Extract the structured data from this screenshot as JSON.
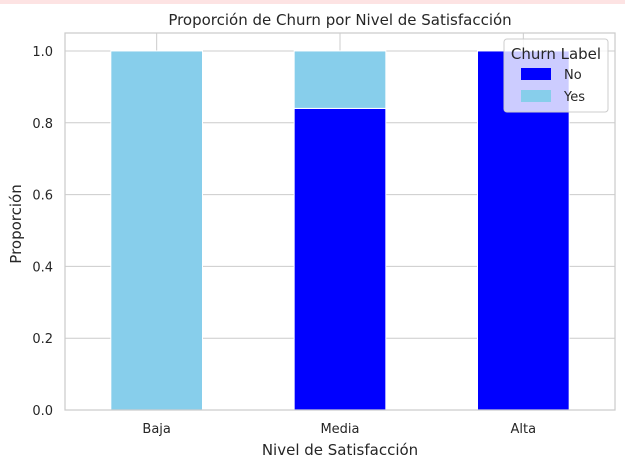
{
  "chart_data": {
    "type": "bar",
    "stacked": true,
    "title": "Proporción de Churn por Nivel de Satisfacción",
    "xlabel": "Nivel de Satisfacción",
    "ylabel": "Proporción",
    "categories": [
      "Baja",
      "Media",
      "Alta"
    ],
    "series": [
      {
        "name": "No",
        "color": "#0000ff",
        "values": [
          0.0,
          0.84,
          1.0
        ]
      },
      {
        "name": "Yes",
        "color": "#87ceeb",
        "values": [
          1.0,
          0.16,
          0.0
        ]
      }
    ],
    "ylim": [
      0,
      1.05
    ],
    "yticks": [
      0.0,
      0.2,
      0.4,
      0.6,
      0.8,
      1.0
    ],
    "ytick_labels": [
      "0.0",
      "0.2",
      "0.4",
      "0.6",
      "0.8",
      "1.0"
    ],
    "legend": {
      "title": "Churn Label",
      "placement": "top-right"
    },
    "grid": true,
    "style": {
      "grid_color": "#cccccc",
      "axes_edge_color": "#cccccc",
      "bar_edge_color": "#ffffff"
    }
  }
}
